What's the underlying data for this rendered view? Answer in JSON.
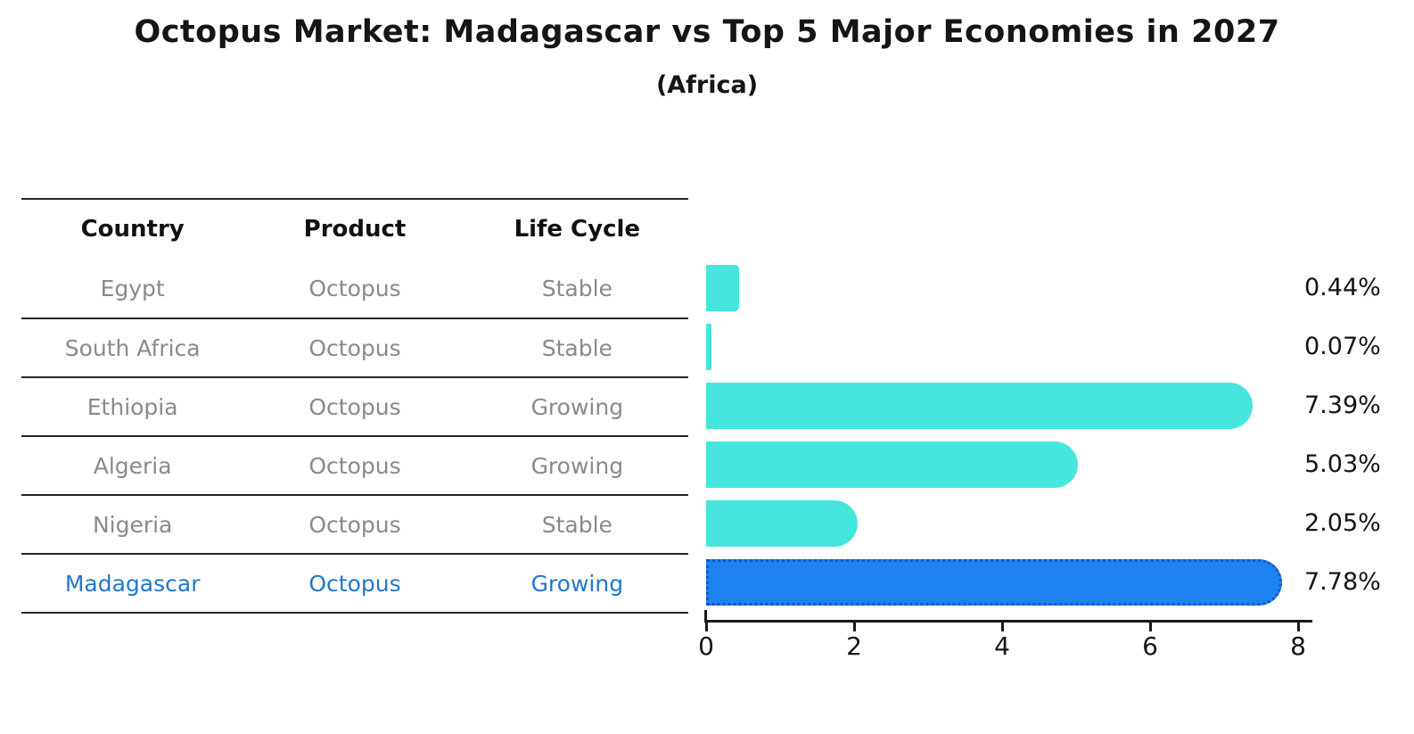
{
  "chart_data": {
    "type": "bar",
    "orientation": "horizontal",
    "title": "Octopus Market: Madagascar vs Top 5 Major Economies in 2027",
    "subtitle": "(Africa)",
    "categories": [
      "Egypt",
      "South Africa",
      "Ethiopia",
      "Algeria",
      "Nigeria",
      "Madagascar"
    ],
    "values": [
      0.44,
      0.07,
      7.39,
      5.03,
      2.05,
      7.78
    ],
    "value_labels": [
      "0.44%",
      "0.07%",
      "7.39%",
      "5.03%",
      "2.05%",
      "7.78%"
    ],
    "highlight_index": 5,
    "xlim": [
      0,
      8
    ],
    "xticks": [
      "0",
      "2",
      "4",
      "6",
      "8"
    ],
    "grid": false,
    "legend": false,
    "bar_color": "#46e6de",
    "highlight_bar_color": "#1e82f0",
    "highlight_bar_border_color": "#0e5ac8",
    "axis_color": "#1a1a1a",
    "row_text_color": "#8a8a8a",
    "highlight_text_color": "#2277cc"
  },
  "table": {
    "headers": [
      "Country",
      "Product",
      "Life Cycle"
    ],
    "rows": [
      [
        "Egypt",
        "Octopus",
        "Stable"
      ],
      [
        "South Africa",
        "Octopus",
        "Stable"
      ],
      [
        "Ethiopia",
        "Octopus",
        "Growing"
      ],
      [
        "Algeria",
        "Octopus",
        "Growing"
      ],
      [
        "Nigeria",
        "Octopus",
        "Stable"
      ],
      [
        "Madagascar",
        "Octopus",
        "Growing"
      ]
    ]
  }
}
